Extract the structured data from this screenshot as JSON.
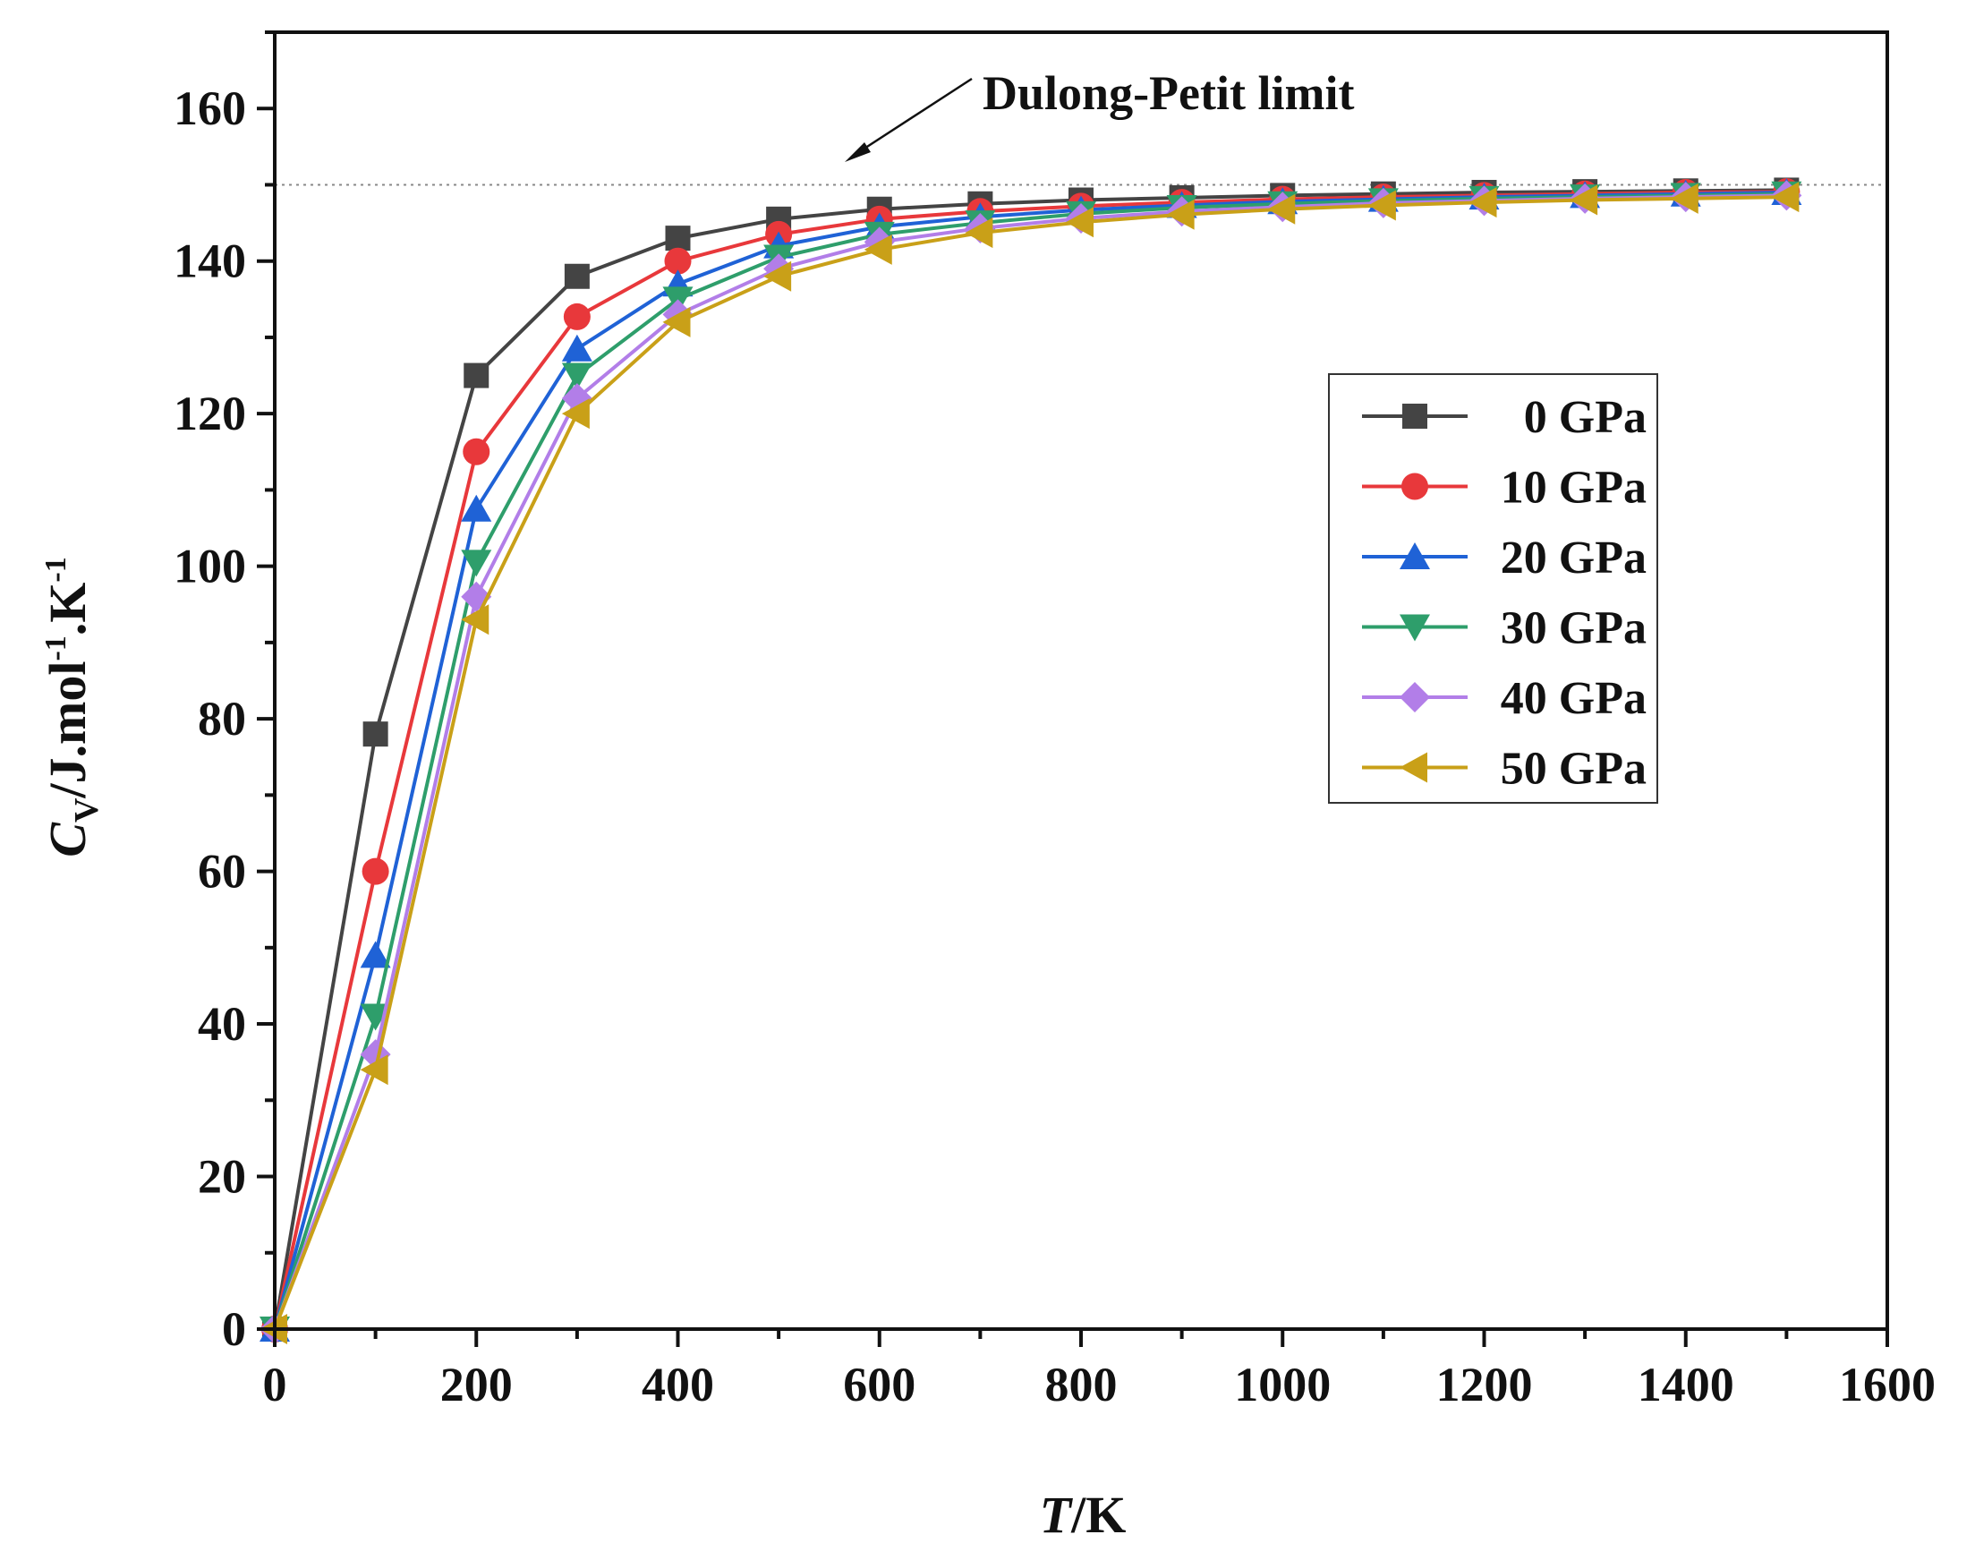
{
  "chart_data": {
    "type": "line",
    "title": "",
    "xlabel_italic": "T",
    "xlabel_rest": "/K",
    "ylabel_main": "C",
    "ylabel_sub": "V",
    "ylabel_rest1": "/J.mol",
    "ylabel_sup1": "-1",
    "ylabel_rest2": ".K",
    "ylabel_sup2": "-1",
    "xlim": [
      0,
      1600
    ],
    "ylim": [
      0,
      170
    ],
    "xticks": [
      0,
      200,
      400,
      600,
      800,
      1000,
      1200,
      1400,
      1600
    ],
    "yticks": [
      0,
      20,
      40,
      60,
      80,
      100,
      120,
      140,
      160
    ],
    "grid": false,
    "legend_placement": "right-center",
    "reference_line": {
      "y": 150,
      "style": "dotted"
    },
    "annotation": "Dulong-Petit limit",
    "x": [
      0,
      100,
      200,
      300,
      400,
      500,
      600,
      700,
      800,
      900,
      1000,
      1100,
      1200,
      1300,
      1400,
      1500
    ],
    "series": [
      {
        "name": "0 GPa",
        "color": "#444444",
        "marker": "square",
        "values": [
          0,
          78,
          125,
          138,
          143,
          145.5,
          146.8,
          147.5,
          148,
          148.3,
          148.6,
          148.8,
          149,
          149.1,
          149.2,
          149.3
        ]
      },
      {
        "name": "10 GPa",
        "color": "#e8383b",
        "marker": "circle",
        "values": [
          0,
          60,
          115,
          132.7,
          140,
          143.5,
          145.5,
          146.5,
          147.2,
          147.7,
          148.1,
          148.4,
          148.6,
          148.8,
          149,
          149.1
        ]
      },
      {
        "name": "20 GPa",
        "color": "#1f62d6",
        "marker": "triangle-up",
        "values": [
          0,
          49,
          107.5,
          128.5,
          137,
          142,
          144.5,
          145.8,
          146.7,
          147.3,
          147.8,
          148.1,
          148.4,
          148.6,
          148.8,
          149
        ]
      },
      {
        "name": "30 GPa",
        "color": "#2e9e6b",
        "marker": "triangle-down",
        "values": [
          0,
          41,
          100.5,
          125,
          135,
          140.5,
          143.5,
          145,
          146.2,
          147,
          147.5,
          147.9,
          148.2,
          148.4,
          148.6,
          148.8
        ]
      },
      {
        "name": "40 GPa",
        "color": "#b27ee8",
        "marker": "diamond",
        "values": [
          0,
          36,
          96,
          122,
          133,
          139,
          142.5,
          144.3,
          145.6,
          146.5,
          147.1,
          147.6,
          147.9,
          148.2,
          148.4,
          148.6
        ]
      },
      {
        "name": "50 GPa",
        "color": "#c9a018",
        "marker": "triangle-left",
        "values": [
          0,
          34,
          93,
          120,
          132,
          138,
          141.5,
          143.7,
          145.1,
          146.1,
          146.8,
          147.3,
          147.7,
          148,
          148.2,
          148.4
        ]
      }
    ]
  }
}
